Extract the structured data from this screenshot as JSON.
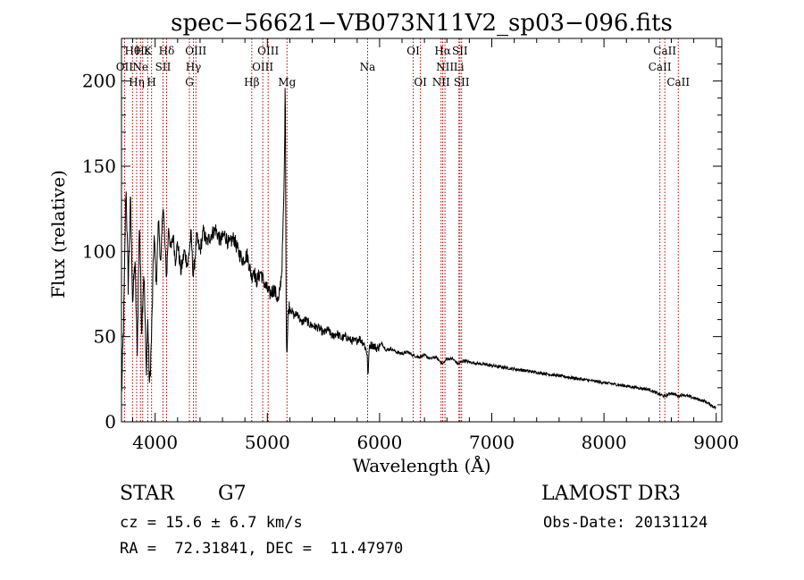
{
  "chart_data": {
    "type": "line",
    "title": "spec−56621−VB073N11V2_sp03−096.fits",
    "xlabel": "Wavelength (Å)",
    "ylabel": "Flux (relative)",
    "xlim": [
      3700,
      9050
    ],
    "ylim": [
      0,
      225
    ],
    "xticks": [
      4000,
      5000,
      6000,
      7000,
      8000,
      9000
    ],
    "yticks": [
      0,
      50,
      100,
      150,
      200
    ],
    "grid": false,
    "series": [
      {
        "name": "flux",
        "x": [
          3700,
          3720,
          3740,
          3760,
          3780,
          3800,
          3820,
          3840,
          3860,
          3880,
          3900,
          3920,
          3935,
          3950,
          3968,
          3990,
          4010,
          4030,
          4050,
          4070,
          4090,
          4102,
          4120,
          4140,
          4160,
          4180,
          4200,
          4230,
          4260,
          4290,
          4320,
          4340,
          4370,
          4400,
          4430,
          4460,
          4500,
          4540,
          4580,
          4620,
          4660,
          4700,
          4740,
          4780,
          4820,
          4860,
          4880,
          4900,
          4940,
          4980,
          5020,
          5060,
          5100,
          5130,
          5150,
          5160,
          5168,
          5175,
          5183,
          5190,
          5210,
          5240,
          5270,
          5300,
          5340,
          5380,
          5420,
          5460,
          5500,
          5540,
          5580,
          5620,
          5660,
          5700,
          5740,
          5780,
          5820,
          5860,
          5890,
          5895,
          5910,
          5940,
          5980,
          6020,
          6060,
          6100,
          6150,
          6200,
          6250,
          6300,
          6350,
          6400,
          6450,
          6500,
          6563,
          6600,
          6650,
          6700,
          6750,
          6800,
          6900,
          7000,
          7100,
          7200,
          7300,
          7400,
          7500,
          7600,
          7700,
          7800,
          7900,
          8000,
          8100,
          8200,
          8300,
          8400,
          8498,
          8542,
          8600,
          8662,
          8700,
          8800,
          8900,
          9000
        ],
        "values": [
          15,
          60,
          140,
          80,
          130,
          70,
          95,
          40,
          120,
          55,
          90,
          30,
          60,
          20,
          50,
          110,
          80,
          120,
          90,
          130,
          100,
          85,
          115,
          100,
          110,
          95,
          105,
          88,
          100,
          92,
          110,
          85,
          108,
          100,
          112,
          105,
          110,
          113,
          106,
          110,
          104,
          108,
          100,
          95,
          98,
          85,
          90,
          82,
          88,
          80,
          75,
          78,
          70,
          90,
          140,
          205,
          55,
          40,
          60,
          68,
          66,
          62,
          64,
          58,
          60,
          57,
          56,
          55,
          52,
          54,
          50,
          52,
          49,
          50,
          48,
          47,
          49,
          46,
          40,
          25,
          45,
          45,
          43,
          46,
          42,
          43,
          41,
          40,
          41,
          39,
          38,
          39,
          37,
          38,
          34,
          37,
          37,
          34,
          36,
          35,
          34,
          33,
          32,
          31,
          30,
          29,
          28,
          27,
          26,
          25,
          24,
          23,
          22,
          21,
          20,
          19,
          16,
          15,
          17,
          15,
          16,
          14,
          12,
          8
        ]
      }
    ],
    "lines": [
      {
        "name": "Hθ",
        "wavelength": 3798
      },
      {
        "name": "OII",
        "wavelength": 3727
      },
      {
        "name": "Hη",
        "wavelength": 3835
      },
      {
        "name": "Ne",
        "wavelength": 3869
      },
      {
        "name": "Hε",
        "wavelength": 3889
      },
      {
        "name": "K",
        "wavelength": 3934
      },
      {
        "name": "H",
        "wavelength": 3968
      },
      {
        "name": "SII",
        "wavelength": 4070
      },
      {
        "name": "Hδ",
        "wavelength": 4102
      },
      {
        "name": "G",
        "wavelength": 4305
      },
      {
        "name": "Hγ",
        "wavelength": 4341
      },
      {
        "name": "OIII",
        "wavelength": 4363
      },
      {
        "name": "Hβ",
        "wavelength": 4861
      },
      {
        "name": "OIII",
        "wavelength": 4959
      },
      {
        "name": "OIII",
        "wavelength": 5007
      },
      {
        "name": "Mg",
        "wavelength": 5175
      },
      {
        "name": "Na",
        "wavelength": 5893
      },
      {
        "name": "OI",
        "wavelength": 6300
      },
      {
        "name": "OI",
        "wavelength": 6364
      },
      {
        "name": "NII",
        "wavelength": 6548
      },
      {
        "name": "Hα",
        "wavelength": 6563
      },
      {
        "name": "NII",
        "wavelength": 6583
      },
      {
        "name": "Li",
        "wavelength": 6707
      },
      {
        "name": "SII",
        "wavelength": 6716
      },
      {
        "name": "SII",
        "wavelength": 6731
      },
      {
        "name": "CaII",
        "wavelength": 8498
      },
      {
        "name": "CaII",
        "wavelength": 8542
      },
      {
        "name": "CaII",
        "wavelength": 8662
      }
    ],
    "line_labels": [
      {
        "text": "Hθ",
        "wavelength": 3798,
        "row": 0
      },
      {
        "text": "Hε",
        "wavelength": 3889,
        "row": 0
      },
      {
        "text": "K",
        "wavelength": 3934,
        "row": 0
      },
      {
        "text": "Hδ",
        "wavelength": 4102,
        "row": 0
      },
      {
        "text": "OIII",
        "wavelength": 4363,
        "row": 0
      },
      {
        "text": "OIII",
        "wavelength": 5007,
        "row": 0
      },
      {
        "text": "OI",
        "wavelength": 6300,
        "row": 0
      },
      {
        "text": "Hα",
        "wavelength": 6563,
        "row": 0
      },
      {
        "text": "SII",
        "wavelength": 6716,
        "row": 0
      },
      {
        "text": "CaII",
        "wavelength": 8542,
        "row": 0
      },
      {
        "text": "OII",
        "wavelength": 3727,
        "row": 1
      },
      {
        "text": "Ne",
        "wavelength": 3869,
        "row": 1
      },
      {
        "text": "SII",
        "wavelength": 4070,
        "row": 1
      },
      {
        "text": "Hγ",
        "wavelength": 4341,
        "row": 1
      },
      {
        "text": "OIII",
        "wavelength": 4959,
        "row": 1
      },
      {
        "text": "Na",
        "wavelength": 5893,
        "row": 1
      },
      {
        "text": "NII",
        "wavelength": 6583,
        "row": 1
      },
      {
        "text": "Li",
        "wavelength": 6707,
        "row": 1
      },
      {
        "text": "CaII",
        "wavelength": 8498,
        "row": 1
      },
      {
        "text": "Hη",
        "wavelength": 3835,
        "row": 2
      },
      {
        "text": "H",
        "wavelength": 3968,
        "row": 2
      },
      {
        "text": "G",
        "wavelength": 4305,
        "row": 2
      },
      {
        "text": "Hβ",
        "wavelength": 4861,
        "row": 2
      },
      {
        "text": "Mg",
        "wavelength": 5175,
        "row": 2
      },
      {
        "text": "OI",
        "wavelength": 6364,
        "row": 2
      },
      {
        "text": "NII",
        "wavelength": 6548,
        "row": 2
      },
      {
        "text": "SII",
        "wavelength": 6731,
        "row": 2
      },
      {
        "text": "CaII",
        "wavelength": 8662,
        "row": 2
      }
    ],
    "colors": {
      "spectrum": "#000000",
      "lines": "#aa0000",
      "axes": "#000000"
    }
  },
  "info": {
    "classification": "STAR",
    "subclass": "G7",
    "survey": "LAMOST DR3",
    "redshift": "cz = 15.6 ± 6.7 km/s",
    "obs_date": "Obs-Date: 20131124",
    "coords": "RA =  72.31841, DEC =  11.47970"
  }
}
